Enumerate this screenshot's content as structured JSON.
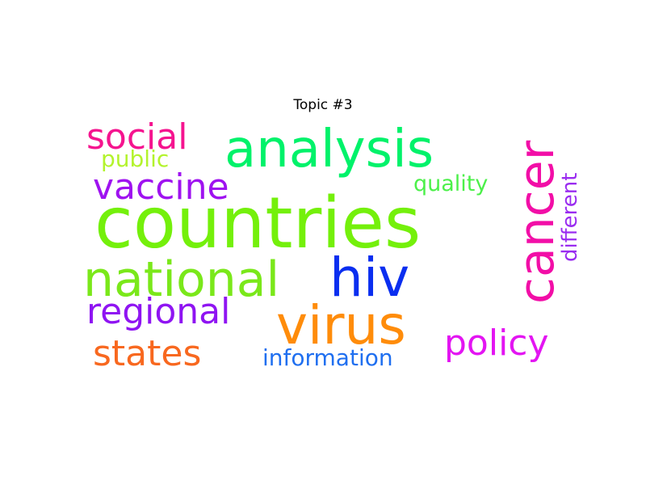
{
  "title": "Topic #3",
  "words": [
    {
      "text": "countries",
      "color": "#74f00b"
    },
    {
      "text": "analysis",
      "color": "#00f26a"
    },
    {
      "text": "social",
      "color": "#f5148f"
    },
    {
      "text": "public",
      "color": "#b3f32d"
    },
    {
      "text": "vaccine",
      "color": "#9f12f0"
    },
    {
      "text": "quality",
      "color": "#4cf04a"
    },
    {
      "text": "cancer",
      "color": "#f20ea7"
    },
    {
      "text": "different",
      "color": "#9a2cf0"
    },
    {
      "text": "national",
      "color": "#7ae81a"
    },
    {
      "text": "hiv",
      "color": "#0a2ef0"
    },
    {
      "text": "regional",
      "color": "#8f14f2"
    },
    {
      "text": "virus",
      "color": "#ff8c0a"
    },
    {
      "text": "policy",
      "color": "#e315f2"
    },
    {
      "text": "states",
      "color": "#f8681f"
    },
    {
      "text": "information",
      "color": "#1f6ff0"
    }
  ]
}
